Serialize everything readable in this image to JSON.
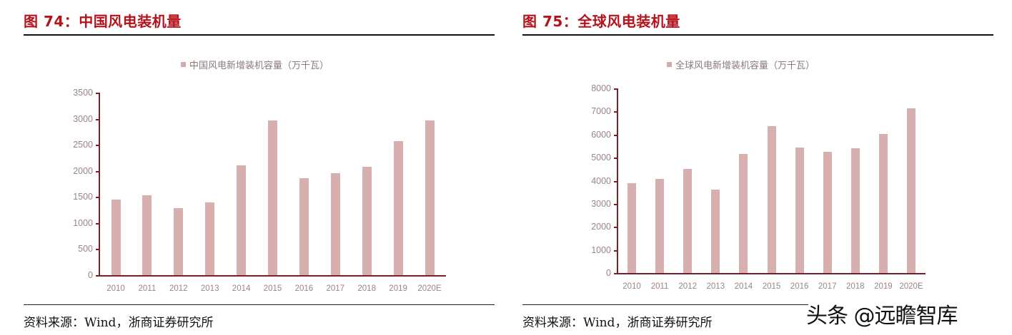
{
  "left": {
    "figure_title": "图 74：中国风电装机量",
    "legend": "中国风电新增装机容量（万千瓦）",
    "source": "资料来源：Wind，浙商证券研究所"
  },
  "right": {
    "figure_title": "图 75：全球风电装机量",
    "legend": "全球风电新增装机容量（万千瓦）",
    "source": "资料来源：Wind，浙商证券研究所"
  },
  "watermark": "头条 @远瞻智库",
  "colors": {
    "title": "#b5121b",
    "bar": "#d8afaf",
    "axis": "#7a1f24",
    "tick_label": "#9a8585"
  },
  "chart_data": [
    {
      "type": "bar",
      "title": "图 74：中国风电装机量",
      "legend": [
        "中国风电新增装机容量（万千瓦）"
      ],
      "legend_position": "top",
      "xlabel": "",
      "ylabel": "万千瓦",
      "ylim": [
        0,
        3500
      ],
      "yticks": [
        0,
        500,
        1000,
        1500,
        2000,
        2500,
        3000,
        3500
      ],
      "grid": false,
      "categories": [
        "2010",
        "2011",
        "2012",
        "2013",
        "2014",
        "2015",
        "2016",
        "2017",
        "2018",
        "2019",
        "2020E"
      ],
      "series": [
        {
          "name": "中国风电新增装机容量（万千瓦）",
          "values": [
            1450,
            1530,
            1290,
            1400,
            2100,
            2970,
            1860,
            1950,
            2080,
            2570,
            2970
          ]
        }
      ]
    },
    {
      "type": "bar",
      "title": "图 75：全球风电装机量",
      "legend": [
        "全球风电新增装机容量（万千瓦）"
      ],
      "legend_position": "top",
      "xlabel": "",
      "ylabel": "万千瓦",
      "ylim": [
        0,
        8000
      ],
      "yticks": [
        0,
        1000,
        2000,
        3000,
        4000,
        5000,
        6000,
        7000,
        8000
      ],
      "grid": false,
      "categories": [
        "2010",
        "2011",
        "2012",
        "2013",
        "2014",
        "2015",
        "2016",
        "2017",
        "2018",
        "2019",
        "2020E"
      ],
      "series": [
        {
          "name": "全球风电新增装机容量（万千瓦）",
          "values": [
            3900,
            4070,
            4510,
            3600,
            5150,
            6370,
            5450,
            5250,
            5400,
            6030,
            7140
          ]
        }
      ]
    }
  ]
}
